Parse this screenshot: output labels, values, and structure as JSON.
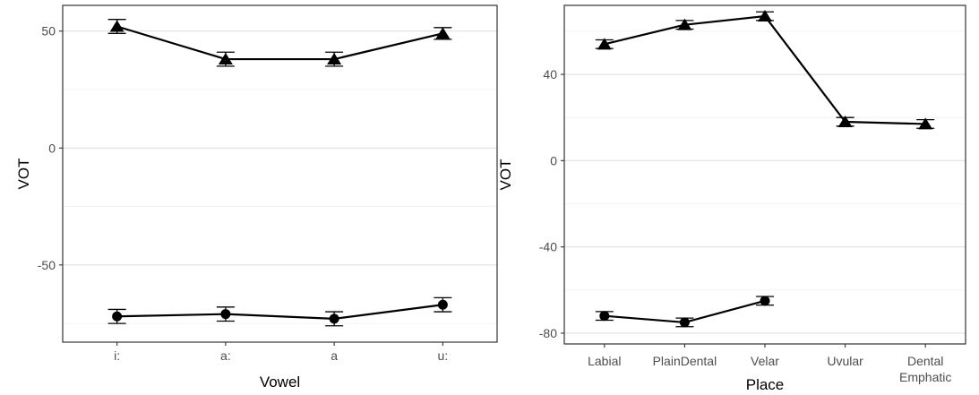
{
  "chart_data": [
    {
      "type": "line",
      "xlabel": "Vowel",
      "ylabel": "VOT",
      "categories": [
        "i:",
        "a:",
        "a",
        "u:"
      ],
      "yticks": [
        -50,
        0,
        50
      ],
      "ylim": [
        -83,
        61
      ],
      "grid": true,
      "legend": "none",
      "series": [
        {
          "marker": "triangle",
          "values": [
            52,
            38,
            38,
            49
          ],
          "error": [
            3,
            3,
            3,
            2.5
          ]
        },
        {
          "marker": "circle",
          "values": [
            -72,
            -71,
            -73,
            -67
          ],
          "error": [
            3,
            3,
            3,
            3
          ]
        }
      ]
    },
    {
      "type": "line",
      "xlabel": "Place",
      "ylabel": "VOT",
      "categories": [
        "Labial",
        "PlainDental",
        "Velar",
        "Uvular",
        "Dental Emphatic"
      ],
      "yticks": [
        -80,
        -40,
        0,
        40
      ],
      "ylim": [
        -85,
        72
      ],
      "grid": true,
      "legend": "none",
      "series": [
        {
          "marker": "triangle",
          "values": [
            54,
            63,
            67,
            18,
            17
          ],
          "error": [
            2,
            2,
            2,
            2,
            2
          ]
        },
        {
          "marker": "circle",
          "values": [
            -72,
            -75,
            -65,
            null,
            null
          ],
          "error": [
            2,
            2,
            2,
            null,
            null
          ]
        }
      ]
    }
  ]
}
